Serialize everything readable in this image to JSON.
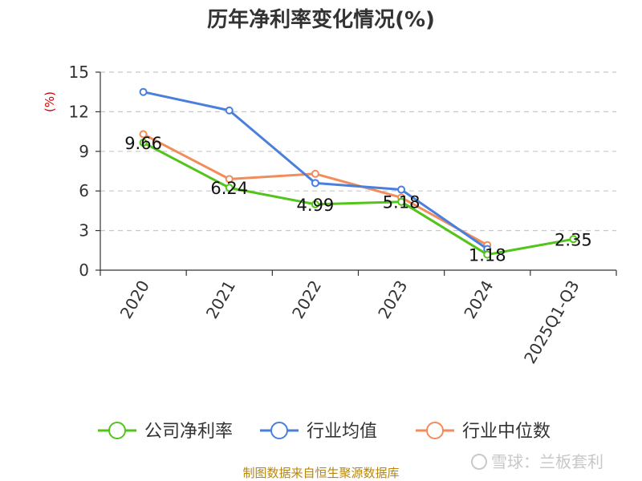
{
  "chart_data": {
    "type": "line",
    "title": "历年净利率变化情况(%)",
    "ylabel": "(%)",
    "xlabel": "",
    "categories": [
      "2020",
      "2021",
      "2022",
      "2023",
      "2024",
      "2025Q1-Q3"
    ],
    "yticks": [
      "0",
      "3",
      "6",
      "9",
      "12",
      "15"
    ],
    "ylim": [
      0,
      15
    ],
    "grid": "horizontal dashed",
    "legend_position": "bottom",
    "series": [
      {
        "name": "公司净利率",
        "color": "#52c41a",
        "values": [
          9.66,
          6.24,
          4.99,
          5.18,
          1.18,
          2.35
        ],
        "labels": [
          "9.66",
          "6.24",
          "4.99",
          "5.18",
          "1.18",
          "2.35"
        ]
      },
      {
        "name": "行业均值",
        "color": "#4a7fdc",
        "values": [
          13.5,
          12.1,
          6.6,
          6.1,
          1.6,
          null
        ]
      },
      {
        "name": "行业中位数",
        "color": "#f28c5a",
        "values": [
          10.3,
          6.9,
          7.3,
          5.5,
          1.9,
          null
        ]
      }
    ]
  },
  "footer": {
    "source": "制图数据来自恒生聚源数据库",
    "watermark": "雪球：兰板套利"
  }
}
